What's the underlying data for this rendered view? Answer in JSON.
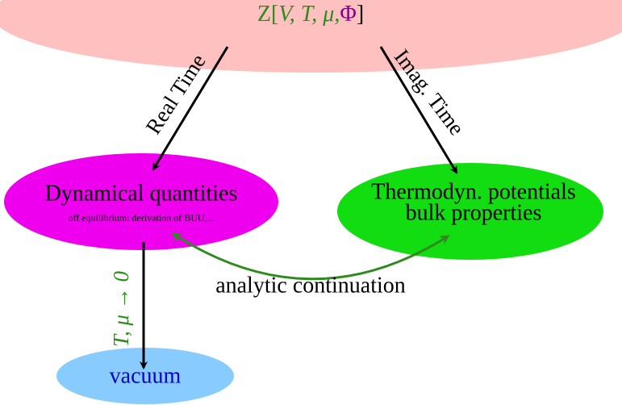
{
  "top": {
    "label_parts": [
      {
        "text": "Z[",
        "color": "#2e8b1e",
        "italic": false
      },
      {
        "text": "V",
        "color": "#2e8b1e",
        "italic": true
      },
      {
        "text": ", ",
        "color": "#2e8b1e",
        "italic": true
      },
      {
        "text": "T",
        "color": "#2e8b1e",
        "italic": true
      },
      {
        "text": ", ",
        "color": "#2e8b1e",
        "italic": true
      },
      {
        "text": "μ",
        "color": "#2e8b1e",
        "italic": true
      },
      {
        "text": ",",
        "color": "#2e8b1e",
        "italic": false
      },
      {
        "text": "Φ",
        "color": "#8b008b",
        "italic": false
      },
      {
        "text": "]",
        "color": "#000000",
        "italic": false
      }
    ]
  },
  "nodes": [
    {
      "label": "Dynamical quantities",
      "sublabel": "off equilibrium: derivation of BUU,..."
    },
    {
      "label": "Thermodyn. potentials",
      "sublabel": "bulk properties"
    },
    {
      "label": "vacuum"
    }
  ],
  "edges": [
    {
      "label": "Real Time"
    },
    {
      "label": "Imag. Time"
    },
    {
      "label": "analytic continuation"
    },
    {
      "label": "T, μ → 0"
    }
  ]
}
